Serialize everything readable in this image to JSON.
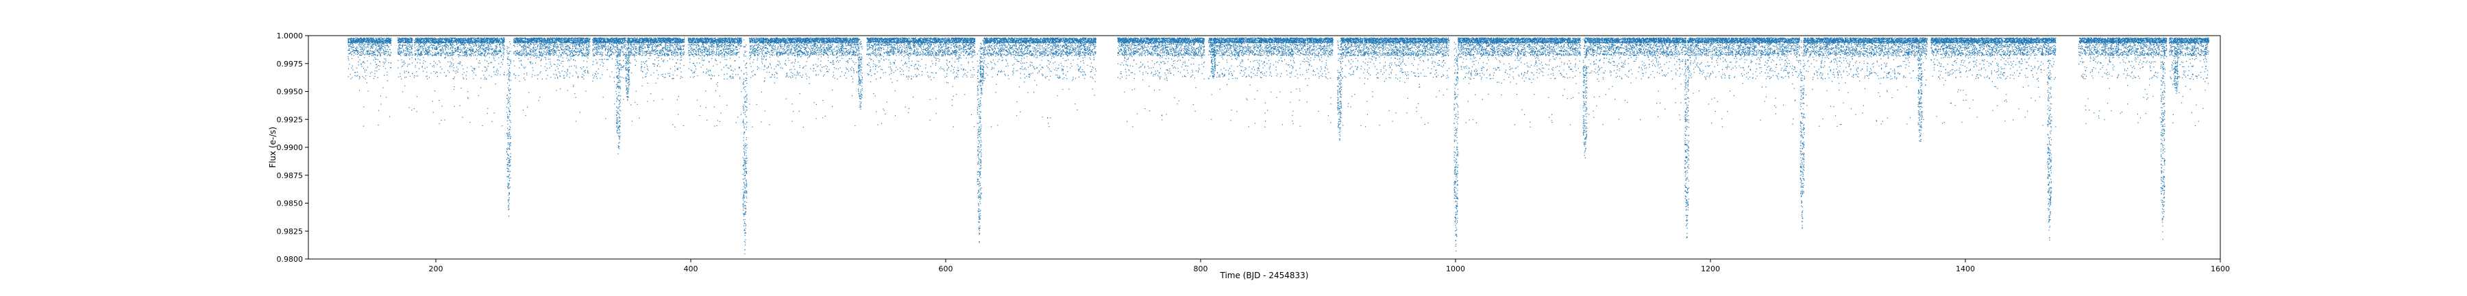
{
  "chart_data": {
    "type": "scatter",
    "title": "",
    "xlabel": "Time (BJD - 2454833)",
    "ylabel": "Flux (e-/s)",
    "xlim": [
      100,
      1600
    ],
    "ylim": [
      0.98,
      1.0
    ],
    "xticks": [
      200,
      400,
      600,
      800,
      1000,
      1200,
      1400,
      1600
    ],
    "xtick_labels": [
      "200",
      "400",
      "600",
      "800",
      "1000",
      "1200",
      "1400",
      "1600"
    ],
    "yticks": [
      0.98,
      0.9825,
      0.985,
      0.9875,
      0.99,
      0.9925,
      0.995,
      0.9975,
      1.0
    ],
    "ytick_labels": [
      "0.9800",
      "0.9825",
      "0.9850",
      "0.9875",
      "0.9900",
      "0.9925",
      "0.9950",
      "0.9975",
      "1.0000"
    ],
    "grid": false,
    "legend": "none",
    "point_color": "#1f77b4",
    "baseline_flux": 0.9998,
    "quarters": [
      [
        131,
        165
      ],
      [
        170,
        182
      ],
      [
        183,
        254
      ],
      [
        261,
        321
      ],
      [
        323,
        349
      ],
      [
        350,
        395
      ],
      [
        398,
        440
      ],
      [
        446,
        532
      ],
      [
        538,
        623
      ],
      [
        630,
        718
      ],
      [
        735,
        803
      ],
      [
        806,
        904
      ],
      [
        910,
        995
      ],
      [
        1002,
        1098
      ],
      [
        1101,
        1181
      ],
      [
        1182,
        1270
      ],
      [
        1273,
        1370
      ],
      [
        1373,
        1471
      ],
      [
        1489,
        1558
      ],
      [
        1560,
        1591
      ]
    ],
    "transits": [
      {
        "x": 257.2,
        "min_flux": 0.9835
      },
      {
        "x": 343.3,
        "min_flux": 0.9888
      },
      {
        "x": 350.5,
        "min_flux": 0.994
      },
      {
        "x": 442.5,
        "min_flux": 0.98
      },
      {
        "x": 533.0,
        "min_flux": 0.993
      },
      {
        "x": 626.4,
        "min_flux": 0.981
      },
      {
        "x": 628.5,
        "min_flux": 0.9945
      },
      {
        "x": 810.0,
        "min_flux": 0.996
      },
      {
        "x": 909.0,
        "min_flux": 0.99
      },
      {
        "x": 1000.5,
        "min_flux": 0.98
      },
      {
        "x": 1101.6,
        "min_flux": 0.9885
      },
      {
        "x": 1181.5,
        "min_flux": 0.981
      },
      {
        "x": 1272.0,
        "min_flux": 0.9825
      },
      {
        "x": 1364.5,
        "min_flux": 0.9895
      },
      {
        "x": 1466.0,
        "min_flux": 0.981
      },
      {
        "x": 1555.0,
        "min_flux": 0.9815
      },
      {
        "x": 1565.5,
        "min_flux": 0.9945
      }
    ]
  }
}
